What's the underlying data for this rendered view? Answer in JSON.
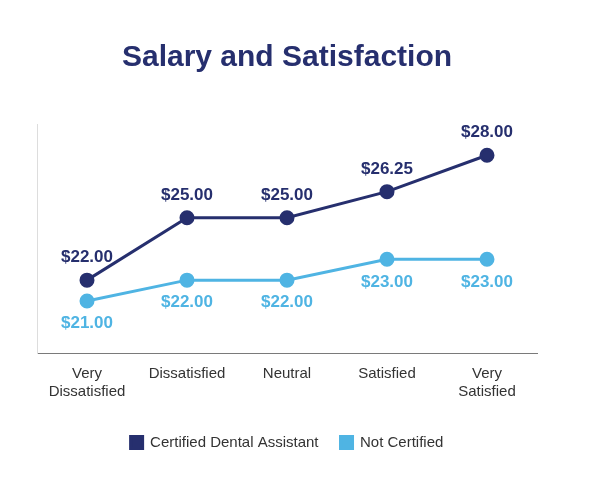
{
  "chart_data": {
    "type": "line",
    "title": "Salary and Satisfaction",
    "categories": [
      "Very Dissatisfied",
      "Dissatisfied",
      "Neutral",
      "Satisfied",
      "Very Satisfied"
    ],
    "series": [
      {
        "name": "Certified Dental Assistant",
        "color": "#262f6e",
        "values": [
          22,
          25,
          25,
          26.25,
          28
        ],
        "value_labels": [
          "$22.00",
          "$25.00",
          "$25.00",
          "$26.25",
          "$28.00"
        ]
      },
      {
        "name": "Not Certified",
        "color": "#4fb4e3",
        "values": [
          21,
          22,
          22,
          23,
          23
        ],
        "value_labels": [
          "$21.00",
          "$22.00",
          "$22.00",
          "$23.00",
          "$23.00"
        ]
      }
    ],
    "ylim": [
      18.5,
      29.5
    ],
    "grid": false,
    "legend": "bottom",
    "data_labels": true,
    "tick_labels": "x",
    "marker": "circle"
  }
}
